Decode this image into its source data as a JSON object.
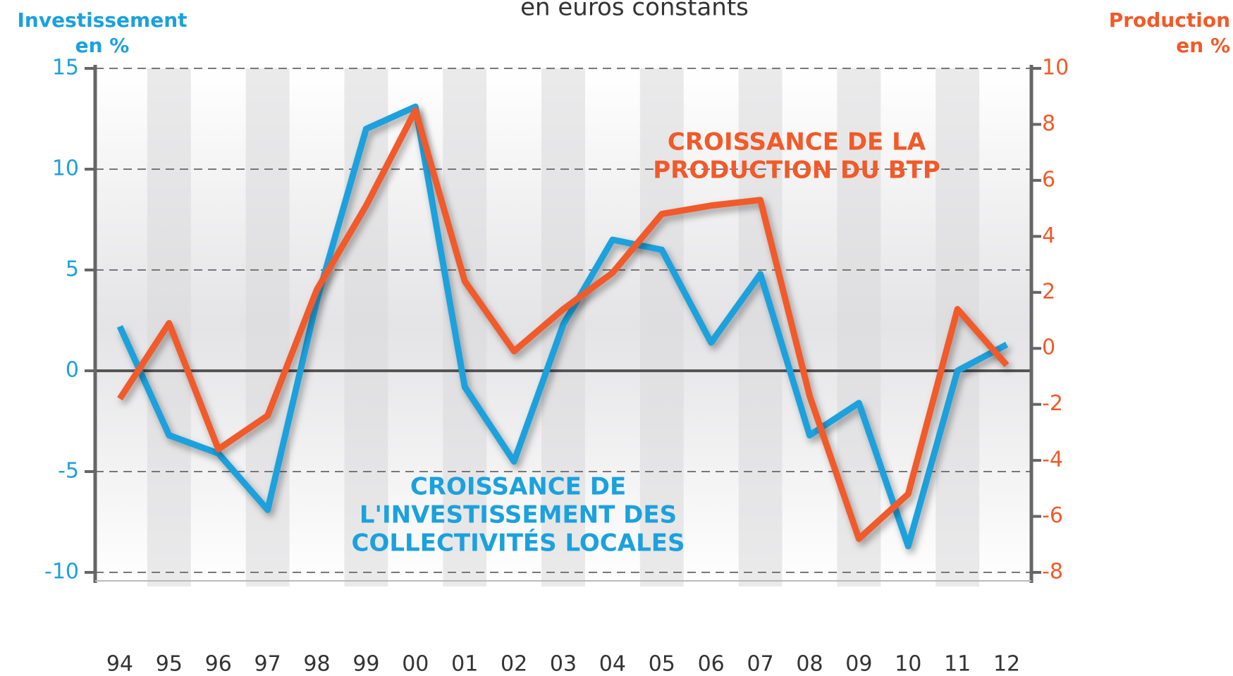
{
  "chart_data": {
    "type": "line",
    "title": "en euros constants",
    "ylabel": [
      "Investissement",
      "en %"
    ],
    "y2label": [
      "Production",
      "en %"
    ],
    "categories": [
      "94",
      "95",
      "96",
      "97",
      "98",
      "99",
      "00",
      "01",
      "02",
      "03",
      "04",
      "05",
      "06",
      "07",
      "08",
      "09",
      "10",
      "11",
      "12"
    ],
    "series": [
      {
        "name": "CROISSANCE DE L'INVESTISSEMENT DES COLLECTIVITÉS LOCALES",
        "color": "#1ba1dd",
        "axis": "y",
        "values": [
          2.2,
          -3.2,
          -4.1,
          -6.9,
          3.5,
          12.0,
          13.1,
          -0.8,
          -4.5,
          2.3,
          6.5,
          6.0,
          1.4,
          4.8,
          -3.2,
          -1.6,
          -8.7,
          0,
          1.3
        ]
      },
      {
        "name": "CROISSANCE DE LA PRODUCTION DU BTP",
        "color": "#f15a29",
        "axis": "y2",
        "values": [
          -1.8,
          0.9,
          -3.6,
          -2.4,
          2.1,
          5.1,
          8.5,
          2.4,
          -0.1,
          1.4,
          2.7,
          4.8,
          5.1,
          5.3,
          -1.7,
          -6.8,
          -5.2,
          1.4,
          -0.6
        ]
      }
    ],
    "annotations": [
      {
        "lines": [
          "CROISSANCE DE LA",
          "PRODUCTION DU BTP"
        ],
        "color": "#f15a29"
      },
      {
        "lines": [
          "CROISSANCE DE",
          "L'INVESTISSEMENT DES",
          "COLLECTIVITÉS LOCALES"
        ],
        "color": "#1ba1dd"
      }
    ],
    "ylim": [
      -10,
      15
    ],
    "yticks": [
      -10,
      -5,
      0,
      5,
      10,
      15
    ],
    "y2lim": [
      -8,
      10
    ],
    "y2ticks": [
      -8,
      -6,
      -4,
      -2,
      0,
      2,
      4,
      6,
      8,
      10
    ],
    "grid": true
  }
}
